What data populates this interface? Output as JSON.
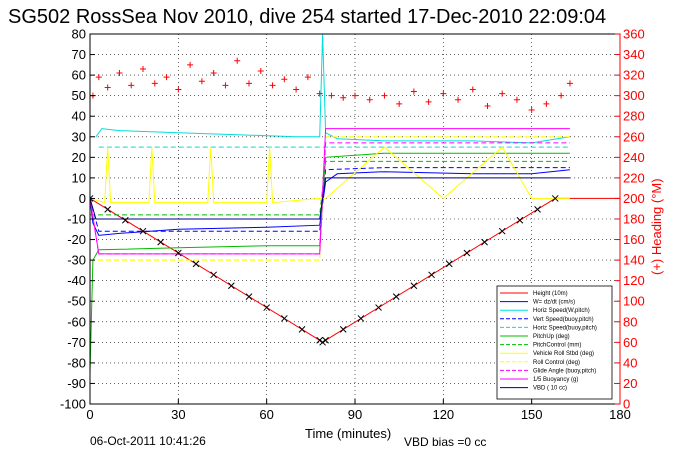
{
  "chart_data": {
    "type": "line",
    "title": "SG502 RossSea Nov 2010, dive 254 started 17-Dec-2010 22:09:04",
    "xlabel": "Time (minutes)",
    "ylabel": "",
    "y2label": "(+) Heading (°M)",
    "xlim": [
      0,
      180
    ],
    "ylim": [
      -100,
      80
    ],
    "y2lim": [
      0,
      360
    ],
    "xticks": [
      "0",
      "30",
      "60",
      "90",
      "120",
      "150",
      "180"
    ],
    "yticks": [
      "-100",
      "-90",
      "-80",
      "-70",
      "-60",
      "-50",
      "-40",
      "-30",
      "-20",
      "-10",
      "0",
      "10",
      "20",
      "30",
      "40",
      "50",
      "60",
      "70",
      "80"
    ],
    "y2ticks": [
      "0",
      "20",
      "40",
      "60",
      "80",
      "100",
      "120",
      "140",
      "160",
      "180",
      "200",
      "220",
      "240",
      "260",
      "280",
      "300",
      "320",
      "340",
      "360"
    ],
    "grid": true,
    "legend_position": "lower-right",
    "footer_date": "06-Oct-2011 10:41:26",
    "footer_note": "VBD bias =0 cc",
    "colors": {
      "axes_left": "#000000",
      "axes_right": "#ff0000",
      "heading": "#ff0000"
    },
    "series": [
      {
        "name": "Height (10m)",
        "color": "#ff0000",
        "style": "solid",
        "x": [
          0,
          78,
          79,
          80,
          158,
          180
        ],
        "y": [
          0,
          -69,
          -70,
          -69,
          0,
          0
        ]
      },
      {
        "name": "W= dz/dt (cm/s)",
        "color": "#0000ff",
        "style": "solid",
        "x": [
          0,
          1,
          3,
          10,
          30,
          60,
          78,
          80,
          84,
          100,
          130,
          150,
          163
        ],
        "y": [
          0,
          -12,
          -18,
          -17,
          -15,
          -14,
          -13,
          8,
          12,
          13,
          12,
          12,
          14
        ]
      },
      {
        "name": "Horiz Speed(W,pitch)",
        "color": "#00dddd",
        "style": "solid",
        "x": [
          2,
          4,
          10,
          30,
          50,
          70,
          78,
          79,
          80,
          84,
          100,
          130,
          150,
          163
        ],
        "y": [
          30,
          34,
          33,
          32,
          31,
          30,
          30,
          80,
          32,
          29,
          28,
          28,
          27,
          30
        ]
      },
      {
        "name": "Vert Speed(buoy,pitch)",
        "color": "#0000ff",
        "style": "dashed",
        "x": [
          0,
          3,
          30,
          60,
          78,
          80,
          100,
          130,
          163
        ],
        "y": [
          0,
          -16,
          -16,
          -16,
          -16,
          14,
          15,
          15,
          15
        ]
      },
      {
        "name": "Horiz Speed(buoy,pitch)",
        "color": "#00dddd",
        "style": "dashed",
        "x": [
          3,
          30,
          60,
          78,
          80,
          100,
          130,
          163
        ],
        "y": [
          25,
          25,
          25,
          25,
          25,
          25,
          25,
          25
        ]
      },
      {
        "name": "PitchUp (deg)",
        "color": "#00bb00",
        "style": "solid",
        "x": [
          0,
          1,
          3,
          30,
          60,
          78,
          80,
          100,
          130,
          163
        ],
        "y": [
          -85,
          -30,
          -25,
          -24,
          -23,
          -23,
          20,
          22,
          22,
          22
        ]
      },
      {
        "name": "PitchControl (mm)",
        "color": "#00bb00",
        "style": "dashed",
        "x": [
          0,
          78,
          80,
          163
        ],
        "y": [
          -8,
          -8,
          18,
          18
        ]
      },
      {
        "name": "Vehicle Roll Stbd (deg)",
        "color": "#ffff00",
        "style": "solid",
        "x": [
          0,
          5,
          6,
          7,
          20,
          21,
          22,
          40,
          41,
          42,
          60,
          61,
          62,
          78,
          80,
          100,
          120,
          140,
          150,
          163
        ],
        "y": [
          0,
          -2,
          25,
          -2,
          -2,
          25,
          -2,
          -2,
          25,
          -2,
          -2,
          25,
          -2,
          0,
          0,
          25,
          0,
          25,
          0,
          0
        ]
      },
      {
        "name": "Roll Control (deg)",
        "color": "#ffff00",
        "style": "dashed",
        "x": [
          0,
          30,
          78,
          80,
          120,
          163
        ],
        "y": [
          -30,
          -30,
          -30,
          30,
          30,
          30
        ]
      },
      {
        "name": "Glide Angle (buoy,pitch)",
        "color": "#ff00ff",
        "style": "dashed",
        "x": [
          0,
          3,
          78,
          80,
          163
        ],
        "y": [
          0,
          -27,
          -27,
          27,
          27
        ]
      },
      {
        "name": "1/5 Buoyancy (g)",
        "color": "#ff00ff",
        "style": "solid",
        "x": [
          0,
          3,
          78,
          80,
          163
        ],
        "y": [
          0,
          -27,
          -27,
          34,
          34
        ]
      },
      {
        "name": "VBD ( 10 cc)",
        "color": "#000080",
        "style": "solid",
        "x": [
          0,
          2,
          78,
          80,
          163
        ],
        "y": [
          0,
          -10,
          -10,
          10,
          10
        ]
      }
    ],
    "heading": {
      "name": "(+) Heading (°M)",
      "x": [
        1,
        3,
        6,
        10,
        14,
        18,
        22,
        26,
        30,
        34,
        38,
        42,
        46,
        50,
        54,
        58,
        62,
        66,
        70,
        74,
        78,
        82,
        86,
        90,
        95,
        100,
        105,
        110,
        115,
        120,
        125,
        130,
        135,
        140,
        145,
        150,
        155,
        160,
        163
      ],
      "y": [
        300,
        318,
        308,
        322,
        310,
        326,
        312,
        318,
        306,
        330,
        314,
        322,
        310,
        334,
        312,
        324,
        310,
        316,
        306,
        318,
        302,
        300,
        298,
        300,
        296,
        300,
        292,
        304,
        294,
        302,
        296,
        306,
        290,
        302,
        296,
        286,
        292,
        300,
        312
      ]
    }
  }
}
